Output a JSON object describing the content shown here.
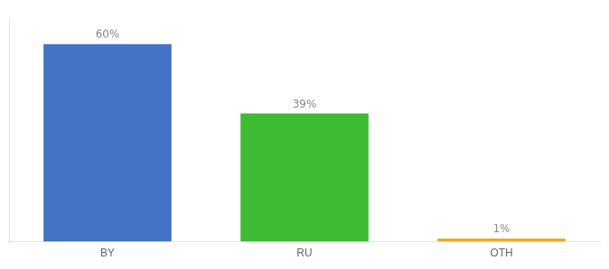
{
  "chart_data": {
    "type": "bar",
    "categories": [
      "BY",
      "RU",
      "OTH"
    ],
    "values": [
      60,
      39,
      1
    ],
    "value_labels": [
      "60%",
      "39%",
      "1%"
    ],
    "data_labels": true,
    "colors": [
      "#4472c4",
      "#3dbb35",
      "#f5a623"
    ],
    "ylim": [
      0,
      68
    ],
    "grid": false,
    "tick_labels": "x"
  }
}
